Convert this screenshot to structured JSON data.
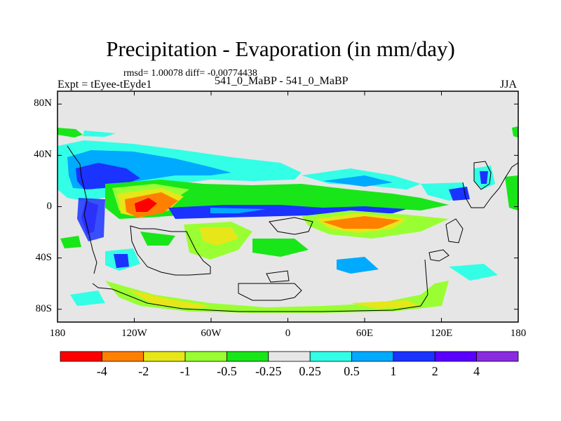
{
  "chart_data": {
    "type": "heatmap",
    "title": "Precipitation - Evaporation (in mm/day)",
    "subtitle": "rmsd= 1.00078 diff= -0.00774438",
    "left_label": "Expt = tEyee-tEyde1",
    "center_label": "541_0_MaBP - 541_0_MaBP",
    "right_label": "JJA",
    "x_ticks": [
      "180",
      "120W",
      "60W",
      "0",
      "60E",
      "120E",
      "180"
    ],
    "y_ticks": [
      "80N",
      "40N",
      "0",
      "40S",
      "80S"
    ],
    "xlim": [
      -180,
      180
    ],
    "ylim": [
      -90,
      90
    ],
    "colorbar": {
      "levels": [
        "-4",
        "-2",
        "-1",
        "-0.5",
        "-0.25",
        "0.25",
        "0.5",
        "1",
        "2",
        "4"
      ],
      "colors": [
        "#ff0000",
        "#ff8000",
        "#e6e619",
        "#99ff33",
        "#19e619",
        "#e6e6e6",
        "#33ffe6",
        "#00aaff",
        "#1a33ff",
        "#5a00ff",
        "#8a2be2"
      ]
    },
    "features": [
      {
        "name": "strong negative (red/orange) band",
        "lon": [
          -140,
          -80
        ],
        "lat": [
          -10,
          10
        ],
        "value_range": "-4 to -2"
      },
      {
        "name": "negative band Indian Ocean",
        "lon": [
          20,
          110
        ],
        "lat": [
          -20,
          -5
        ],
        "value_range": "-2 to -1"
      },
      {
        "name": "positive equatorial band",
        "lon": [
          -140,
          100
        ],
        "lat": [
          -5,
          5
        ],
        "value_range": "1 to 4"
      },
      {
        "name": "positive subtropical region",
        "lon": [
          -170,
          -120
        ],
        "lat": [
          10,
          30
        ],
        "value_range": "2 to 4"
      },
      {
        "name": "negative southern coastal band",
        "lon": [
          -160,
          90
        ],
        "lat": [
          -85,
          -65
        ],
        "value_range": "-2 to -0.5"
      }
    ]
  }
}
